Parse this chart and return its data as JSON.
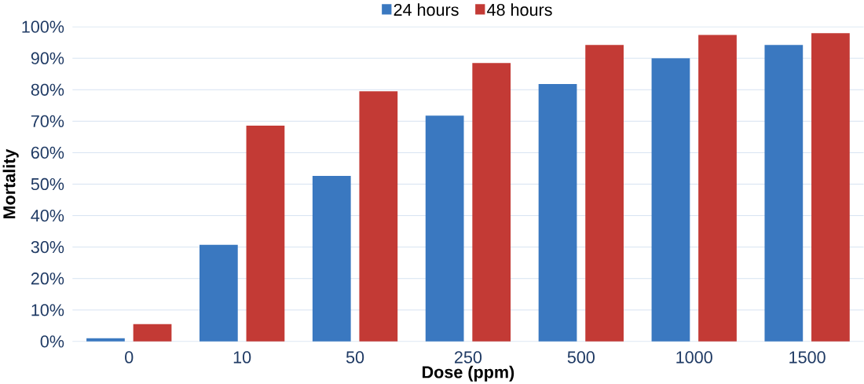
{
  "chart_data": {
    "type": "bar",
    "xlabel": "Dose (ppm)",
    "ylabel": "Mortality",
    "categories": [
      "0",
      "10",
      "50",
      "250",
      "500",
      "1000",
      "1500"
    ],
    "series": [
      {
        "name": "24 hours",
        "color": "#3a78c0",
        "values": [
          1,
          30.7,
          52.6,
          71.8,
          81.8,
          90,
          94.2
        ]
      },
      {
        "name": "48 hours",
        "color": "#c33a35",
        "values": [
          5.5,
          68.6,
          79.5,
          88.5,
          94.2,
          97.4,
          98
        ]
      }
    ],
    "ylim": [
      0,
      100
    ],
    "yticks": [
      {
        "value": 0,
        "label": "0%"
      },
      {
        "value": 10,
        "label": "10%"
      },
      {
        "value": 20,
        "label": "20%"
      },
      {
        "value": 30,
        "label": "30%"
      },
      {
        "value": 40,
        "label": "40%"
      },
      {
        "value": 50,
        "label": "50%"
      },
      {
        "value": 60,
        "label": "60%"
      },
      {
        "value": 70,
        "label": "70%"
      },
      {
        "value": 80,
        "label": "80%"
      },
      {
        "value": 90,
        "label": "90%"
      },
      {
        "value": 100,
        "label": "100%"
      }
    ],
    "grid": "y",
    "legend": "top"
  }
}
